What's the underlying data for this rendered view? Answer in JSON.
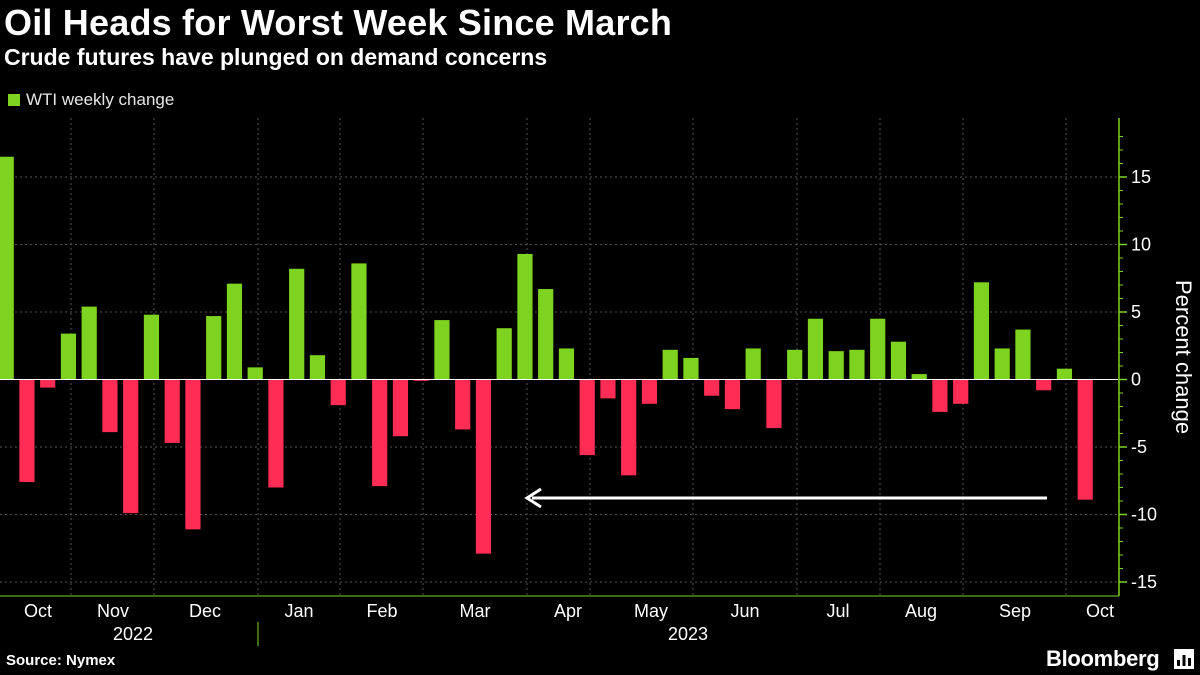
{
  "title": "Oil Heads for Worst Week Since March",
  "subtitle": "Crude futures have plunged on demand concerns",
  "source": "Source: Nymex",
  "brand": "Bloomberg",
  "colors": {
    "positive": "#7ed321",
    "negative": "#ff2d55",
    "axis": "#7ed321",
    "grid": "#555555",
    "arrow": "#ffffff"
  },
  "chart_data": {
    "type": "bar",
    "title": "Oil Heads for Worst Week Since March",
    "ylabel": "Percent change",
    "ylim": [
      -16,
      19
    ],
    "yticks": [
      15,
      10,
      5,
      0,
      -5,
      -10,
      -15
    ],
    "series": [
      {
        "name": "WTI weekly change",
        "values": [
          16.5,
          -7.6,
          -0.6,
          3.4,
          5.4,
          -3.9,
          -9.9,
          4.8,
          -4.7,
          -11.1,
          4.7,
          7.1,
          0.9,
          -8.0,
          8.2,
          1.8,
          -1.9,
          8.6,
          -7.9,
          -4.2,
          -0.1,
          4.4,
          -3.7,
          -12.9,
          3.8,
          9.3,
          6.7,
          2.3,
          -5.6,
          -1.4,
          -7.1,
          -1.8,
          2.2,
          1.6,
          -1.2,
          -2.2,
          2.3,
          -3.6,
          2.2,
          4.5,
          2.1,
          2.2,
          4.5,
          2.8,
          0.4,
          -2.4,
          -1.8,
          7.2,
          2.3,
          3.7,
          -0.8,
          0.8,
          -8.9
        ]
      }
    ],
    "x_month_labels": [
      "Oct",
      "Nov",
      "Dec",
      "Jan",
      "Feb",
      "Mar",
      "Apr",
      "May",
      "Jun",
      "Jul",
      "Aug",
      "Sep",
      "Oct"
    ],
    "x_year_labels": [
      "2022",
      "2023"
    ],
    "legend": "WTI weekly change",
    "legend_position": "top-left",
    "annotation": "arrow from the latest week pointing back to March 2023"
  }
}
